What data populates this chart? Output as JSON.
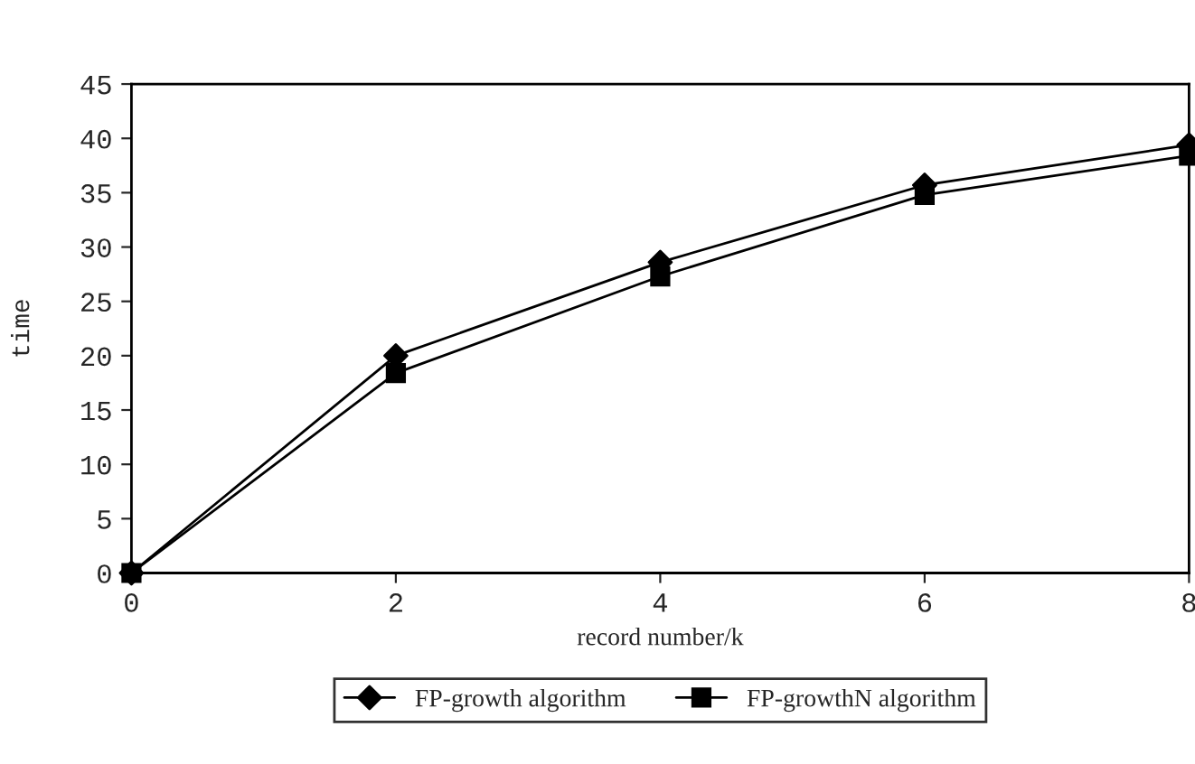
{
  "chart_data": {
    "type": "line",
    "xlabel": "record number/k",
    "ylabel": "time",
    "x": [
      0,
      2,
      4,
      6,
      8
    ],
    "series": [
      {
        "name": "FP-growth algorithm",
        "color": "#000000",
        "marker": "diamond",
        "values": [
          0,
          20,
          28.6,
          35.7,
          39.4
        ]
      },
      {
        "name": "FP-growthN algorithm",
        "color": "#000000",
        "marker": "square",
        "values": [
          0,
          18.4,
          27.3,
          34.8,
          38.4
        ]
      }
    ],
    "xlim": [
      0,
      8
    ],
    "ylim": [
      0,
      45
    ],
    "xticks": [
      0,
      2,
      4,
      6,
      8
    ],
    "yticks": [
      0,
      5,
      10,
      15,
      20,
      25,
      30,
      35,
      40,
      45
    ],
    "grid": false,
    "legend": "bottom",
    "line_style": "solid"
  }
}
